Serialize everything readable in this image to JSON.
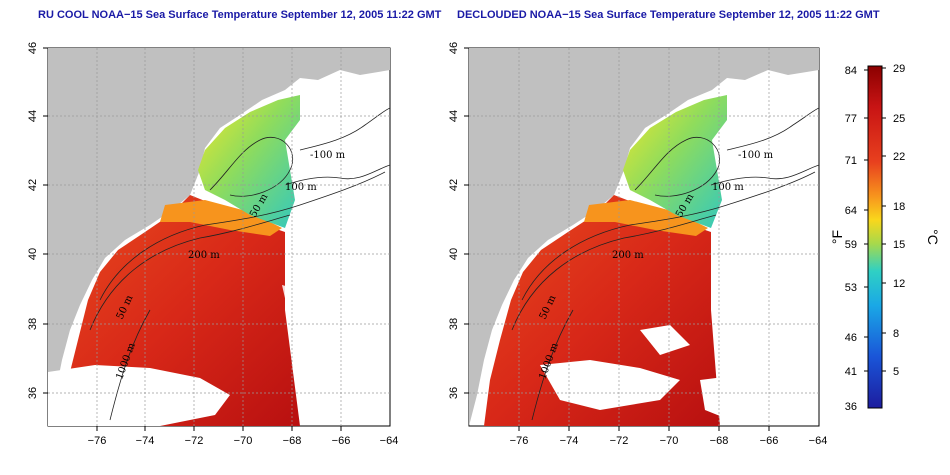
{
  "maps": [
    {
      "id": "left",
      "title": "RU COOL NOAA−15 Sea Surface Temperature September 12, 2005 11:22 GMT",
      "contour_labels": [
        "100 m",
        "100 m",
        "50 m",
        "50 m",
        "1000 m",
        "200 m",
        "-100 m"
      ]
    },
    {
      "id": "right",
      "title": "DECLOUDED NOAA−15 Sea Surface Temperature September 12, 2005 11:22 GMT",
      "contour_labels": [
        "100 m",
        "100 m",
        "50 m",
        "50 m",
        "1000 m",
        "200 m",
        "-100 m"
      ]
    }
  ],
  "axes": {
    "x_ticks": [
      "−76",
      "−74",
      "−72",
      "−70",
      "−68",
      "−66",
      "−64"
    ],
    "y_ticks": [
      "36",
      "38",
      "40",
      "42",
      "44",
      "46"
    ]
  },
  "colorbar": {
    "left_label": "°F",
    "right_label": "°C",
    "f_ticks": [
      "84",
      "77",
      "71",
      "64",
      "59",
      "53",
      "46",
      "41",
      "36"
    ],
    "c_ticks": [
      "29",
      "25",
      "22",
      "18",
      "15",
      "12",
      "8",
      "5"
    ],
    "colors": [
      "#8b0000",
      "#d9221c",
      "#f15a24",
      "#f9a31b",
      "#f5e61e",
      "#a8dc4a",
      "#37c9b6",
      "#1aa3e0",
      "#1a5fd8",
      "#1f1fa8"
    ]
  },
  "colors": {
    "land": "#c0c0c0",
    "cloud": "#ffffff",
    "title": "#1a1aa6"
  }
}
